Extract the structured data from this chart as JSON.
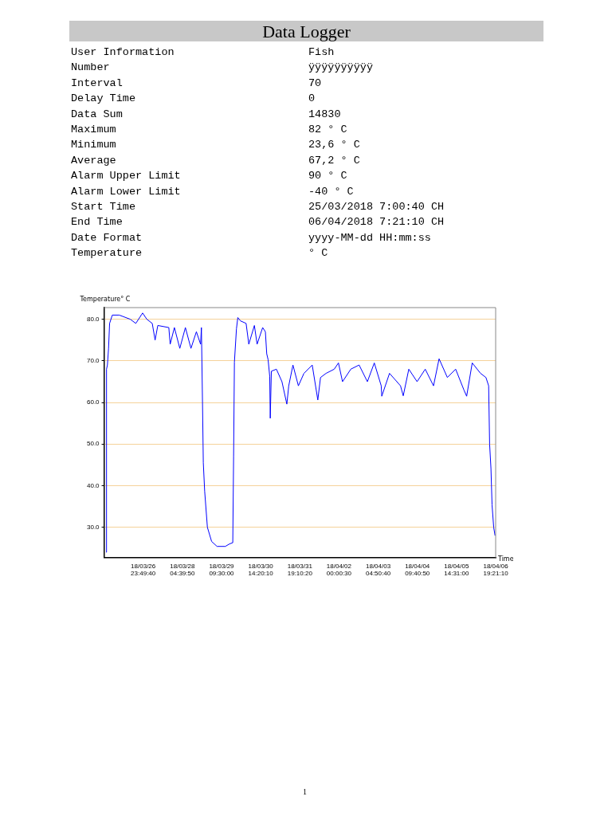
{
  "chart_data": {
    "type": "line",
    "title": "Data Logger",
    "annotations": [
      "User Information",
      "Fish",
      "Number",
      "ÿÿÿÿÿÿÿÿÿÿ",
      "Interval",
      "70",
      "Delay Time",
      "0",
      "Data Sum",
      "14830",
      "Maximum",
      "82 ° C",
      "Minimum",
      "23,6 ° C",
      "Average",
      "67,2 ° C",
      "Alarm Upper Limit",
      "90 ° C",
      "Alarm Lower Limit",
      "-40 ° C",
      "Start Time",
      "25/03/2018 7:00:40 CH",
      "End Time",
      "06/04/2018 7:21:10 CH",
      "Date Format",
      "yyyy-MM-dd HH:mm:ss",
      "Temperature",
      "° C",
      "1"
    ],
    "ylabel": "Temperature° C",
    "xlabel": "Time",
    "x": [
      "2018-03-25T20:30",
      "2018-03-25T20:50",
      "2018-03-25T21:30",
      "2018-03-25T22:20",
      "2018-03-25T23:06",
      "2018-03-26T01:06",
      "2018-03-26T06:12",
      "2018-03-26T14:18",
      "2018-03-26T18:24",
      "2018-03-26T23:24",
      "2018-03-27T02:30",
      "2018-03-27T06:30",
      "2018-03-27T08:36",
      "2018-03-27T10:36",
      "2018-03-27T18:42",
      "2018-03-27T19:42",
      "2018-03-27T22:48",
      "2018-03-28T02:48",
      "2018-03-28T06:54",
      "2018-03-28T11:00",
      "2018-03-28T15:00",
      "2018-03-28T18:06",
      "2018-03-28T18:42",
      "2018-03-28T19:30",
      "2018-03-28T20:06",
      "2018-03-28T21:06",
      "2018-03-28T23:06",
      "2018-03-29T02:12",
      "2018-03-29T06:12",
      "2018-03-29T12:18",
      "2018-03-29T15:24",
      "2018-03-29T17:48",
      "2018-03-29T18:24",
      "2018-03-29T19:00",
      "2018-03-29T20:30",
      "2018-03-29T21:30",
      "2018-03-29T23:30",
      "2018-03-30T03:36",
      "2018-03-30T05:36",
      "2018-03-30T09:42",
      "2018-03-30T11:42",
      "2018-03-30T15:48",
      "2018-03-30T17:48",
      "2018-03-30T18:48",
      "2018-03-30T19:48",
      "2018-03-30T21:00",
      "2018-03-30T21:24",
      "2018-03-30T22:12",
      "2018-03-31T01:54",
      "2018-03-31T06:00",
      "2018-03-31T09:36",
      "2018-03-31T11:00",
      "2018-03-31T14:06",
      "2018-03-31T18:06",
      "2018-03-31T22:12",
      "2018-04-01T04:18",
      "2018-04-01T08:24",
      "2018-04-01T10:24",
      "2018-04-01T14:30",
      "2018-04-01T20:30",
      "2018-04-01T23:36",
      "2018-04-02T02:36",
      "2018-04-02T08:42",
      "2018-04-02T14:48",
      "2018-04-02T20:54",
      "2018-04-03T02:00",
      "2018-04-03T07:06",
      "2018-04-03T07:30",
      "2018-04-03T13:12",
      "2018-04-03T21:18",
      "2018-04-03T23:18",
      "2018-04-04T03:24",
      "2018-04-04T09:30",
      "2018-04-04T15:30",
      "2018-04-04T21:36",
      "2018-04-05T01:42",
      "2018-04-05T07:48",
      "2018-04-05T13:54",
      "2018-04-05T20:00",
      "2018-04-05T22:00",
      "2018-04-06T02:06",
      "2018-04-06T08:12",
      "2018-04-06T12:12",
      "2018-04-06T14:12",
      "2018-04-06T14:54",
      "2018-04-06T15:54",
      "2018-04-06T16:42",
      "2018-04-06T17:54",
      "2018-04-06T18:54"
    ],
    "series": [
      {
        "color": "#0000ff",
        "values": [
          24,
          68,
          69,
          73,
          79,
          81,
          81,
          80,
          79,
          81.5,
          80,
          79,
          75,
          78.5,
          78,
          74,
          78,
          73,
          78,
          73,
          77,
          74,
          78,
          60,
          45.5,
          38.7,
          30,
          26.6,
          25.4,
          25.4,
          26,
          26.3,
          47,
          69.7,
          77.7,
          80.4,
          79.6,
          79,
          74,
          78.5,
          74,
          78,
          77,
          71.7,
          70.3,
          66.3,
          56.2,
          67.5,
          68,
          65,
          59.6,
          64,
          69,
          64,
          67,
          69,
          60.6,
          66,
          67,
          68,
          69.5,
          65,
          68,
          69,
          65,
          69.5,
          64,
          61.5,
          67,
          64,
          61.6,
          68,
          65,
          68,
          64,
          70.5,
          66,
          68,
          63,
          61.5,
          69.5,
          67,
          66,
          64,
          50,
          44.1,
          35.4,
          30,
          28
        ]
      }
    ],
    "xlim": [
      "2018-03-25T19:00:40",
      "2018-04-06T19:21:10"
    ],
    "xticks": [
      {
        "value": "2018-03-26T23:49:40",
        "label": "18/03/26\n23:49:40"
      },
      {
        "value": "2018-03-28T04:39:50",
        "label": "18/03/28\n04:39:50"
      },
      {
        "value": "2018-03-29T09:30:00",
        "label": "18/03/29\n09:30:00"
      },
      {
        "value": "2018-03-30T14:20:10",
        "label": "18/03/30\n14:20:10"
      },
      {
        "value": "2018-03-31T19:10:20",
        "label": "18/03/31\n19:10:20"
      },
      {
        "value": "2018-04-02T00:00:30",
        "label": "18/04/02\n00:00:30"
      },
      {
        "value": "2018-04-03T04:50:40",
        "label": "18/04/03\n04:50:40"
      },
      {
        "value": "2018-04-04T09:40:50",
        "label": "18/04/04\n09:40:50"
      },
      {
        "value": "2018-04-05T14:31:00",
        "label": "18/04/05\n14:31:00"
      },
      {
        "value": "2018-04-06T19:21:10",
        "label": "18/04/06\n19:21:10"
      }
    ],
    "ylim": [
      22.7,
      82.8
    ],
    "yticks": [
      {
        "value": 30,
        "label": "30.0"
      },
      {
        "value": 40,
        "label": "40.0"
      },
      {
        "value": 50,
        "label": "50.0"
      },
      {
        "value": 60,
        "label": "60.0"
      },
      {
        "value": 70,
        "label": "70.0"
      },
      {
        "value": 80,
        "label": "80.0"
      }
    ],
    "grid": "y",
    "legend": false,
    "marker": "none",
    "line_style": "solid"
  }
}
